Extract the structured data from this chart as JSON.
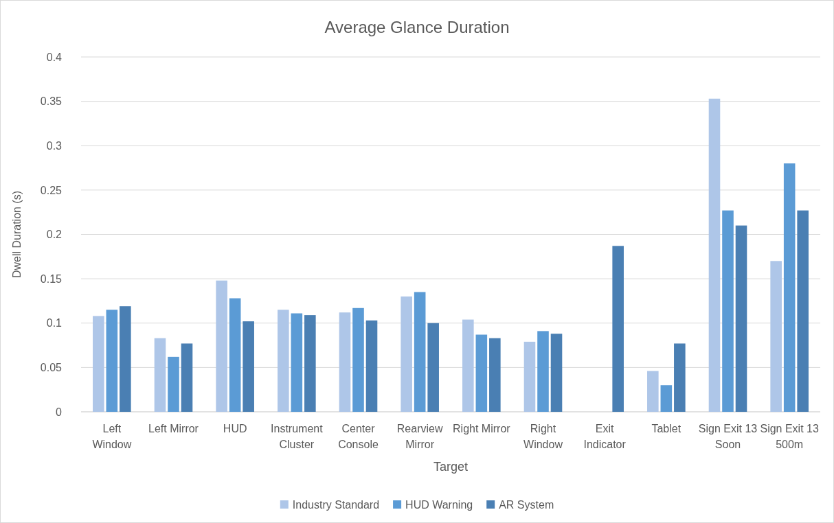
{
  "chart_data": {
    "type": "bar",
    "title": "Average Glance Duration",
    "xlabel": "Target",
    "ylabel": "Dwell Duration (s)",
    "categories": [
      "Left Window",
      "Left Mirror",
      "HUD",
      "Instrument Cluster",
      "Center Console",
      "Rearview Mirror",
      "Right Mirror",
      "Right Window",
      "Exit Indicator",
      "Tablet",
      "Sign Exit 13 Soon",
      "Sign Exit 13 500m"
    ],
    "series": [
      {
        "name": "Industry Standard",
        "color": "#aec6e8",
        "values": [
          0.108,
          0.083,
          0.148,
          0.115,
          0.112,
          0.13,
          0.104,
          0.079,
          null,
          0.046,
          0.353,
          0.17
        ]
      },
      {
        "name": "HUD Warning",
        "color": "#5b9bd5",
        "values": [
          0.115,
          0.062,
          0.128,
          0.111,
          0.117,
          0.135,
          0.087,
          0.091,
          null,
          0.03,
          0.227,
          0.28
        ]
      },
      {
        "name": "AR System",
        "color": "#4a7fb3",
        "values": [
          0.119,
          0.077,
          0.102,
          0.109,
          0.103,
          0.1,
          0.083,
          0.088,
          0.187,
          0.077,
          0.21,
          0.227
        ]
      }
    ],
    "ylim": [
      0,
      0.4
    ],
    "yticks": [
      0,
      0.05,
      0.1,
      0.15,
      0.2,
      0.25,
      0.3,
      0.35,
      0.4
    ],
    "grid": "y",
    "legend": "bottom"
  }
}
